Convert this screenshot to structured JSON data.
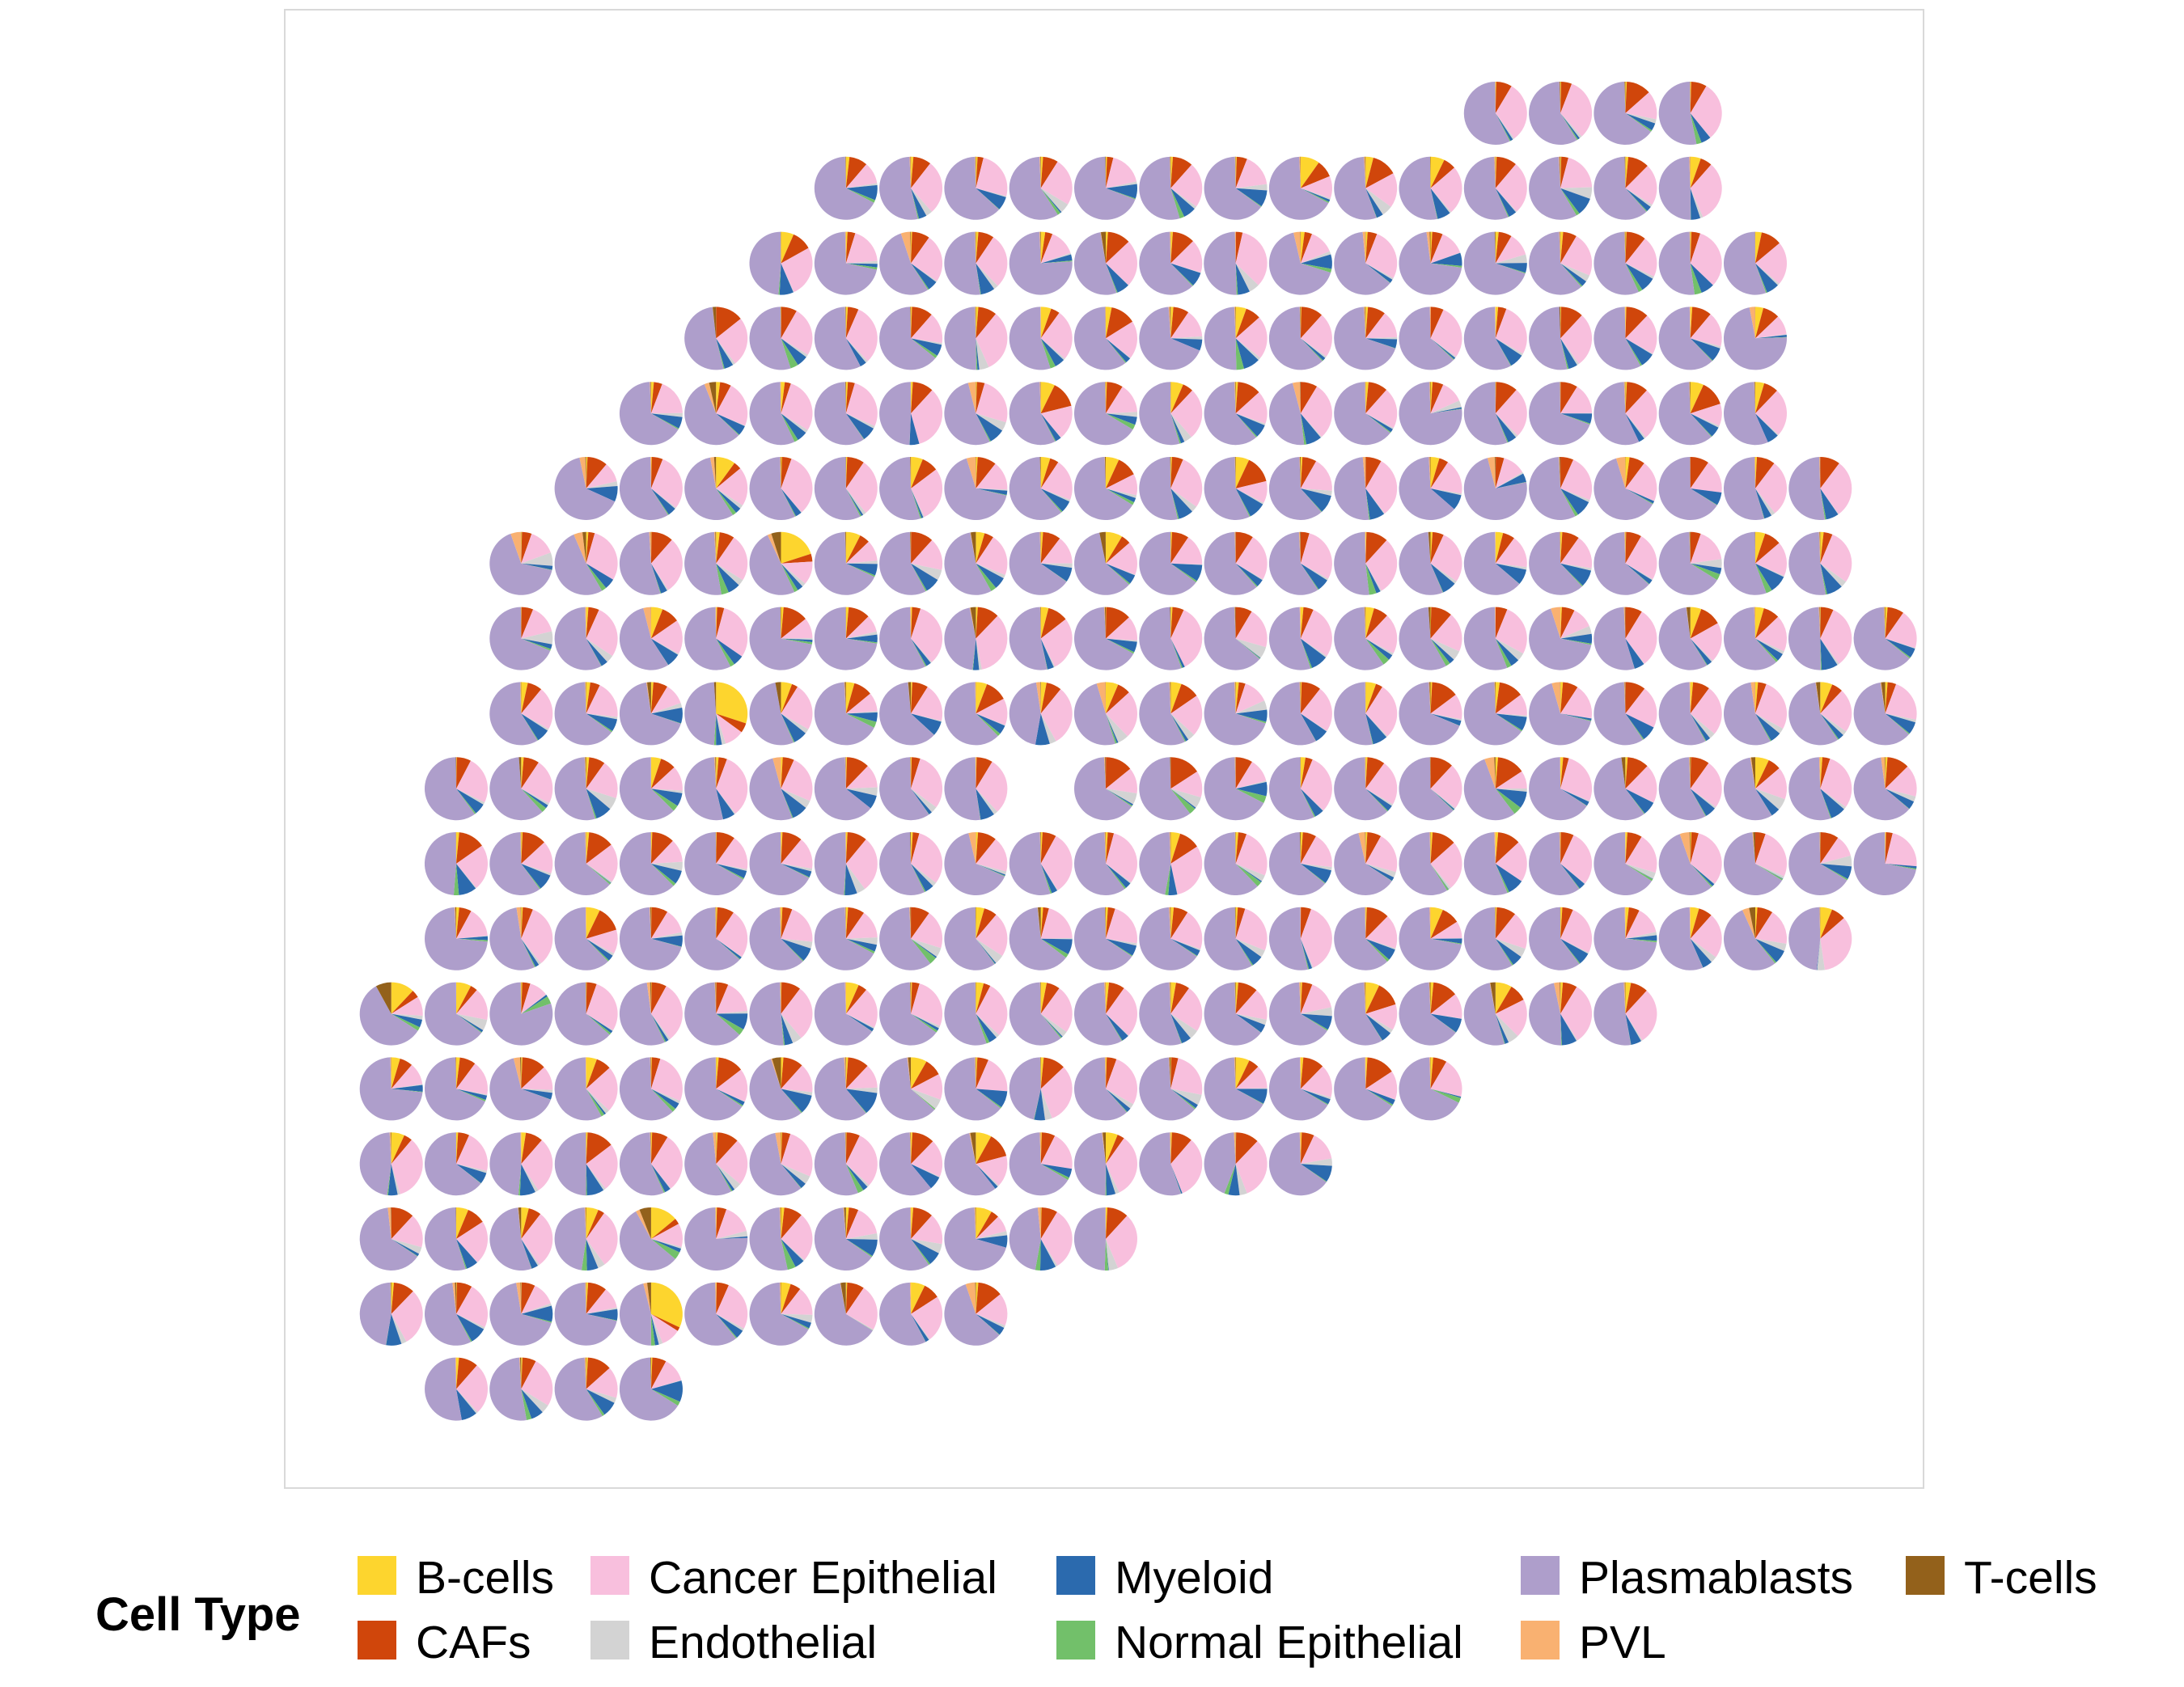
{
  "chart_data": {
    "type": "pie-scatter",
    "title": "",
    "xlabel": "",
    "ylabel": "",
    "grid": false,
    "legend_position": "bottom",
    "legend": {
      "title": "Cell Type",
      "entries": [
        {
          "name": "B-cells",
          "color": "#fdd52e"
        },
        {
          "name": "CAFs",
          "color": "#d0460b"
        },
        {
          "name": "Cancer Epithelial",
          "color": "#f8bfdd"
        },
        {
          "name": "Endothelial",
          "color": "#d3d3d3"
        },
        {
          "name": "Myeloid",
          "color": "#2b6aae"
        },
        {
          "name": "Normal Epithelial",
          "color": "#72c06a"
        },
        {
          "name": "Plasmablasts",
          "color": "#ae9ecb"
        },
        {
          "name": "PVL",
          "color": "#f9b171"
        },
        {
          "name": "T-cells",
          "color": "#93611b"
        }
      ]
    },
    "spots": {
      "description_of_encoding": "Each row lists the integer column indices of spots present; spot proportions are per cell type in legend order",
      "rows": [
        {
          "row": 0,
          "cols": [
            16,
            17,
            18,
            19
          ]
        },
        {
          "row": 1,
          "cols": [
            6,
            7,
            8,
            9,
            10,
            11,
            12,
            13,
            14,
            15,
            16,
            17,
            18,
            19
          ]
        },
        {
          "row": 2,
          "cols": [
            5,
            6,
            7,
            8,
            9,
            10,
            11,
            12,
            13,
            14,
            15,
            16,
            17,
            18,
            19,
            20
          ]
        },
        {
          "row": 3,
          "cols": [
            4,
            5,
            6,
            7,
            8,
            9,
            10,
            11,
            12,
            13,
            14,
            15,
            16,
            17,
            18,
            19,
            20
          ]
        },
        {
          "row": 4,
          "cols": [
            3,
            4,
            5,
            6,
            7,
            8,
            9,
            10,
            11,
            12,
            13,
            14,
            15,
            16,
            17,
            18,
            19,
            20
          ]
        },
        {
          "row": 5,
          "cols": [
            2,
            3,
            4,
            5,
            6,
            7,
            8,
            9,
            10,
            11,
            12,
            13,
            14,
            15,
            16,
            17,
            18,
            19,
            20,
            21
          ]
        },
        {
          "row": 6,
          "cols": [
            1,
            2,
            3,
            4,
            5,
            6,
            7,
            8,
            9,
            10,
            11,
            12,
            13,
            14,
            15,
            16,
            17,
            18,
            19,
            20,
            21
          ]
        },
        {
          "row": 7,
          "cols": [
            1,
            2,
            3,
            4,
            5,
            6,
            7,
            8,
            9,
            10,
            11,
            12,
            13,
            14,
            15,
            16,
            17,
            18,
            19,
            20,
            21,
            22
          ]
        },
        {
          "row": 8,
          "cols": [
            1,
            2,
            3,
            4,
            5,
            6,
            7,
            8,
            9,
            10,
            11,
            12,
            13,
            14,
            15,
            16,
            17,
            18,
            19,
            20,
            21,
            22
          ]
        },
        {
          "row": 9,
          "cols": [
            0,
            1,
            2,
            3,
            4,
            5,
            6,
            7,
            8,
            10,
            11,
            12,
            13,
            14,
            15,
            16,
            17,
            18,
            19,
            20,
            21,
            22
          ]
        },
        {
          "row": 10,
          "cols": [
            0,
            1,
            2,
            3,
            4,
            5,
            6,
            7,
            8,
            9,
            10,
            11,
            12,
            13,
            14,
            15,
            16,
            17,
            18,
            19,
            20,
            21,
            22
          ]
        },
        {
          "row": 11,
          "cols": [
            0,
            1,
            2,
            3,
            4,
            5,
            6,
            7,
            8,
            9,
            10,
            11,
            12,
            13,
            14,
            15,
            16,
            17,
            18,
            19,
            20,
            21
          ]
        },
        {
          "row": 12,
          "cols": [
            -1,
            0,
            1,
            2,
            3,
            4,
            5,
            6,
            7,
            8,
            9,
            10,
            11,
            12,
            13,
            14,
            15,
            16,
            17,
            18
          ]
        },
        {
          "row": 13,
          "cols": [
            -1,
            0,
            1,
            2,
            3,
            4,
            5,
            6,
            7,
            8,
            9,
            10,
            11,
            12,
            13,
            14,
            15
          ]
        },
        {
          "row": 14,
          "cols": [
            -1,
            0,
            1,
            2,
            3,
            4,
            5,
            6,
            7,
            8,
            9,
            10,
            11,
            12,
            13
          ]
        },
        {
          "row": 15,
          "cols": [
            -1,
            0,
            1,
            2,
            3,
            4,
            5,
            6,
            7,
            8,
            9,
            10
          ]
        },
        {
          "row": 16,
          "cols": [
            -1,
            0,
            1,
            2,
            3,
            4,
            5,
            6,
            7,
            8
          ]
        },
        {
          "row": 17,
          "cols": [
            0,
            1,
            2,
            3
          ]
        }
      ],
      "special": [
        {
          "row": 12,
          "col": -1,
          "values": [
            0.12,
            0.04,
            0.1,
            0.02,
            0.04,
            0.02,
            0.58,
            0.0,
            0.08
          ]
        },
        {
          "row": 15,
          "col": 3,
          "values": [
            0.14,
            0.03,
            0.12,
            0.01,
            0.02,
            0.04,
            0.56,
            0.02,
            0.06
          ]
        },
        {
          "row": 16,
          "col": 3,
          "values": [
            0.32,
            0.02,
            0.1,
            0.02,
            0.02,
            0.02,
            0.46,
            0.02,
            0.02
          ]
        },
        {
          "row": 8,
          "col": 4,
          "values": [
            0.3,
            0.05,
            0.1,
            0.02,
            0.03,
            0.01,
            0.48,
            0.0,
            0.01
          ]
        },
        {
          "row": 6,
          "col": 5,
          "values": [
            0.2,
            0.04,
            0.12,
            0.02,
            0.03,
            0.02,
            0.5,
            0.02,
            0.05
          ]
        },
        {
          "row": 5,
          "col": 4,
          "values": [
            0.1,
            0.04,
            0.2,
            0.02,
            0.03,
            0.02,
            0.56,
            0.02,
            0.01
          ]
        }
      ]
    }
  }
}
